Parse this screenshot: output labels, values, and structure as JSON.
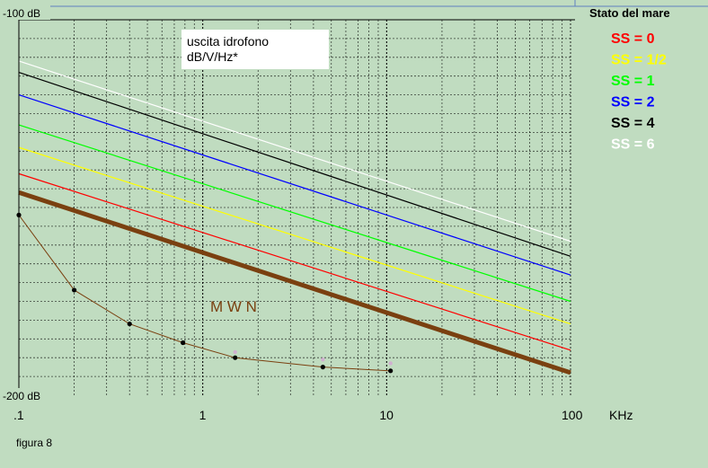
{
  "chart_data": {
    "type": "line",
    "title": "",
    "xlabel": "KHz",
    "ylabel": "",
    "xscale": "log",
    "xlim": [
      0.1,
      100
    ],
    "ylim": [
      -200,
      -100
    ],
    "x_tick_labels": [
      ".1",
      "1",
      "10",
      "100"
    ],
    "x_tick_values": [
      0.1,
      1,
      10,
      100
    ],
    "y_top_label": "-100 dB",
    "y_bottom_label": "-200 dB",
    "grid": true,
    "legend_title": "Stato del mare",
    "legend_position": "top-right",
    "annotation_box": [
      "uscita idrofono",
      "dB/V/Hz*"
    ],
    "series": [
      {
        "name": "SS = 0",
        "color": "#ff0000",
        "x": [
          0.1,
          100
        ],
        "y": [
          -141,
          -188
        ]
      },
      {
        "name": "SS = 1/2",
        "color": "#ffff00",
        "x": [
          0.1,
          100
        ],
        "y": [
          -134,
          -181
        ]
      },
      {
        "name": "SS = 1",
        "color": "#00ff00",
        "x": [
          0.1,
          100
        ],
        "y": [
          -128,
          -175
        ]
      },
      {
        "name": "SS = 2",
        "color": "#0000ff",
        "x": [
          0.1,
          100
        ],
        "y": [
          -120,
          -168
        ]
      },
      {
        "name": "SS = 4",
        "color": "#000000",
        "x": [
          0.1,
          100
        ],
        "y": [
          -114,
          -163
        ]
      },
      {
        "name": "SS = 6",
        "color": "#ffffff",
        "x": [
          0.1,
          100
        ],
        "y": [
          -111,
          -159
        ]
      }
    ],
    "mwn": {
      "label": "M W N",
      "color": "#7a4010",
      "x": [
        0.1,
        100
      ],
      "y": [
        -146,
        -194
      ]
    },
    "measured": {
      "color": "#7a4010",
      "x": [
        0.1,
        0.2,
        0.4,
        0.78,
        1.5,
        4.5,
        10.5
      ],
      "y": [
        -152,
        -172,
        -181,
        -186,
        -190,
        -192.5,
        -193.5
      ]
    },
    "measured_faint": {
      "x": [
        1.5,
        4.5,
        10.5
      ],
      "y": [
        -188.5,
        -190.5,
        -191.5
      ]
    }
  },
  "footer": {
    "figure_label": "figura 8"
  }
}
